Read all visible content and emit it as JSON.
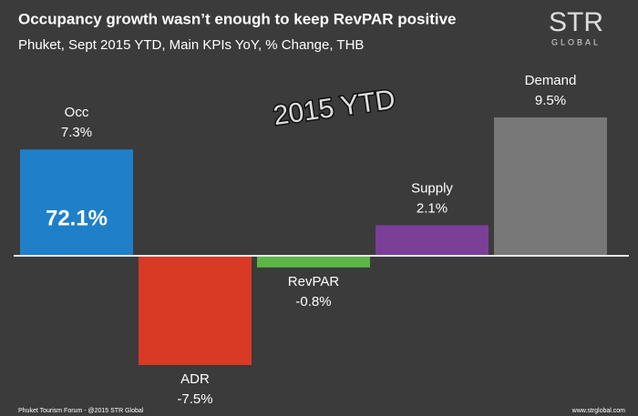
{
  "chart_data": {
    "type": "bar",
    "title": "Occupancy growth wasn’t enough to keep RevPAR positive",
    "subtitle": "Phuket, Sept 2015 YTD, Main KPIs YoY, % Change, THB",
    "annotation": "2015 YTD",
    "occ_level": "72.1%",
    "logo": {
      "main": "STR",
      "sub": "GLOBAL"
    },
    "footer_left": "Phuket Tourism Forum - @2015 STR Global",
    "footer_right": "www.strglobal.com",
    "categories": [
      "Occ",
      "ADR",
      "RevPAR",
      "Supply",
      "Demand"
    ],
    "values": [
      7.3,
      -7.5,
      -0.8,
      2.1,
      9.5
    ],
    "value_labels": [
      "7.3%",
      "-7.5%",
      "-0.8%",
      "2.1%",
      "9.5%"
    ],
    "colors": [
      "#1f7fc9",
      "#d83a25",
      "#5cb646",
      "#7b3f98",
      "#787878"
    ]
  }
}
